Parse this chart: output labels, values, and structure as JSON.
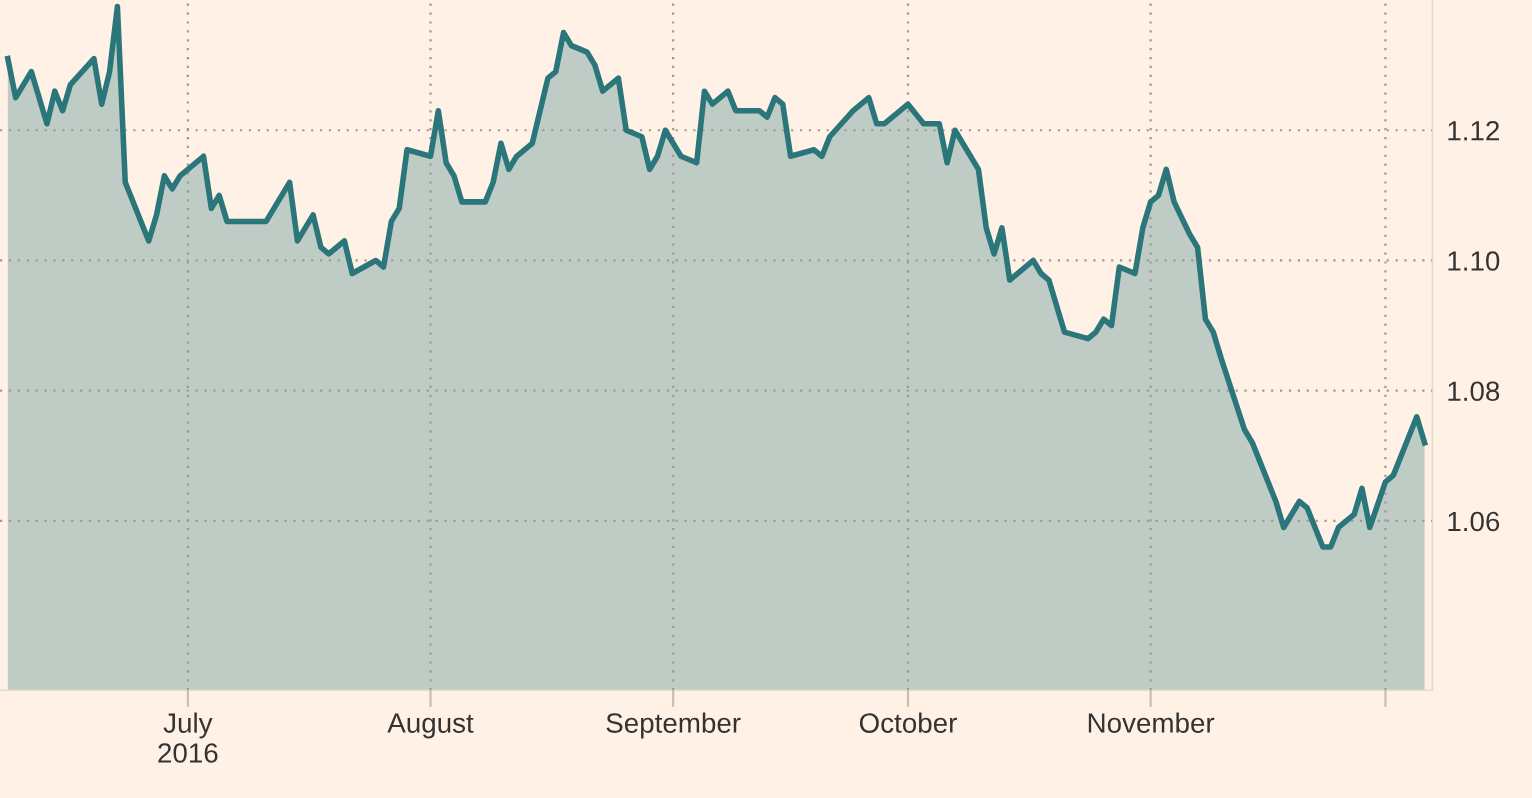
{
  "chart_data": {
    "type": "area",
    "x": [
      "2016-06-08",
      "2016-06-09",
      "2016-06-11",
      "2016-06-13",
      "2016-06-14",
      "2016-06-15",
      "2016-06-16",
      "2016-06-19",
      "2016-06-20",
      "2016-06-21",
      "2016-06-22",
      "2016-06-23",
      "2016-06-26",
      "2016-06-27",
      "2016-06-28",
      "2016-06-29",
      "2016-06-30",
      "2016-07-03",
      "2016-07-04",
      "2016-07-05",
      "2016-07-06",
      "2016-07-08",
      "2016-07-11",
      "2016-07-14",
      "2016-07-15",
      "2016-07-17",
      "2016-07-18",
      "2016-07-19",
      "2016-07-21",
      "2016-07-22",
      "2016-07-25",
      "2016-07-26",
      "2016-07-27",
      "2016-07-28",
      "2016-07-29",
      "2016-08-01",
      "2016-08-02",
      "2016-08-03",
      "2016-08-04",
      "2016-08-05",
      "2016-08-08",
      "2016-08-09",
      "2016-08-10",
      "2016-08-11",
      "2016-08-12",
      "2016-08-14",
      "2016-08-16",
      "2016-08-17",
      "2016-08-18",
      "2016-08-19",
      "2016-08-21",
      "2016-08-22",
      "2016-08-23",
      "2016-08-25",
      "2016-08-26",
      "2016-08-28",
      "2016-08-29",
      "2016-08-30",
      "2016-08-31",
      "2016-09-02",
      "2016-09-04",
      "2016-09-05",
      "2016-09-06",
      "2016-09-08",
      "2016-09-09",
      "2016-09-12",
      "2016-09-13",
      "2016-09-14",
      "2016-09-15",
      "2016-09-16",
      "2016-09-19",
      "2016-09-20",
      "2016-09-21",
      "2016-09-24",
      "2016-09-26",
      "2016-09-27",
      "2016-09-28",
      "2016-09-29",
      "2016-10-01",
      "2016-10-03",
      "2016-10-04",
      "2016-10-05",
      "2016-10-06",
      "2016-10-07",
      "2016-10-10",
      "2016-10-11",
      "2016-10-12",
      "2016-10-13",
      "2016-10-14",
      "2016-10-17",
      "2016-10-18",
      "2016-10-19",
      "2016-10-21",
      "2016-10-24",
      "2016-10-25",
      "2016-10-26",
      "2016-10-27",
      "2016-10-28",
      "2016-10-30",
      "2016-10-31",
      "2016-11-01",
      "2016-11-02",
      "2016-11-03",
      "2016-11-04",
      "2016-11-06",
      "2016-11-07",
      "2016-11-08",
      "2016-11-09",
      "2016-11-10",
      "2016-11-13",
      "2016-11-14",
      "2016-11-15",
      "2016-11-17",
      "2016-11-18",
      "2016-11-20",
      "2016-11-21",
      "2016-11-23",
      "2016-11-24",
      "2016-11-25",
      "2016-11-27",
      "2016-11-28",
      "2016-11-29",
      "2016-12-01",
      "2016-12-02",
      "2016-12-05",
      "2016-12-06"
    ],
    "series": [
      {
        "color": "#2a767a",
        "values": [
          1.131,
          1.125,
          1.129,
          1.121,
          1.126,
          1.123,
          1.127,
          1.131,
          1.124,
          1.129,
          1.139,
          1.112,
          1.103,
          1.107,
          1.113,
          1.111,
          1.113,
          1.116,
          1.108,
          1.11,
          1.106,
          1.106,
          1.106,
          1.112,
          1.103,
          1.107,
          1.102,
          1.101,
          1.103,
          1.098,
          1.1,
          1.099,
          1.106,
          1.108,
          1.117,
          1.116,
          1.123,
          1.115,
          1.113,
          1.109,
          1.109,
          1.112,
          1.118,
          1.114,
          1.116,
          1.118,
          1.128,
          1.129,
          1.135,
          1.133,
          1.132,
          1.13,
          1.126,
          1.128,
          1.12,
          1.119,
          1.114,
          1.116,
          1.12,
          1.116,
          1.115,
          1.126,
          1.124,
          1.126,
          1.123,
          1.123,
          1.122,
          1.125,
          1.124,
          1.116,
          1.117,
          1.116,
          1.119,
          1.123,
          1.125,
          1.121,
          1.121,
          1.122,
          1.124,
          1.121,
          1.121,
          1.121,
          1.115,
          1.12,
          1.114,
          1.105,
          1.101,
          1.105,
          1.097,
          1.1,
          1.098,
          1.097,
          1.089,
          1.088,
          1.089,
          1.091,
          1.09,
          1.099,
          1.098,
          1.105,
          1.109,
          1.11,
          1.114,
          1.109,
          1.104,
          1.102,
          1.091,
          1.089,
          1.085,
          1.074,
          1.072,
          1.069,
          1.063,
          1.059,
          1.063,
          1.062,
          1.056,
          1.056,
          1.059,
          1.061,
          1.065,
          1.059,
          1.066,
          1.067,
          1.076,
          1.072
        ]
      }
    ],
    "ylim": [
      1.034,
      1.14
    ],
    "yticks": [
      1.06,
      1.08,
      {
        "value": 1.1,
        "label": "1.10"
      },
      1.12
    ],
    "xlim": [
      "2016-06-07",
      "2016-12-07"
    ],
    "xticks": [
      {
        "value": "2016-07-01",
        "label": "July\n2016"
      },
      {
        "value": "2016-08-01",
        "label": "August"
      },
      {
        "value": "2016-09-01",
        "label": "September"
      },
      {
        "value": "2016-10-01",
        "label": "October"
      },
      {
        "value": "2016-11-01",
        "label": "November"
      },
      {
        "value": "2016-12-01",
        "label": null
      }
    ],
    "grid": true,
    "legend": false,
    "marker": "none",
    "line_style": "solid"
  }
}
